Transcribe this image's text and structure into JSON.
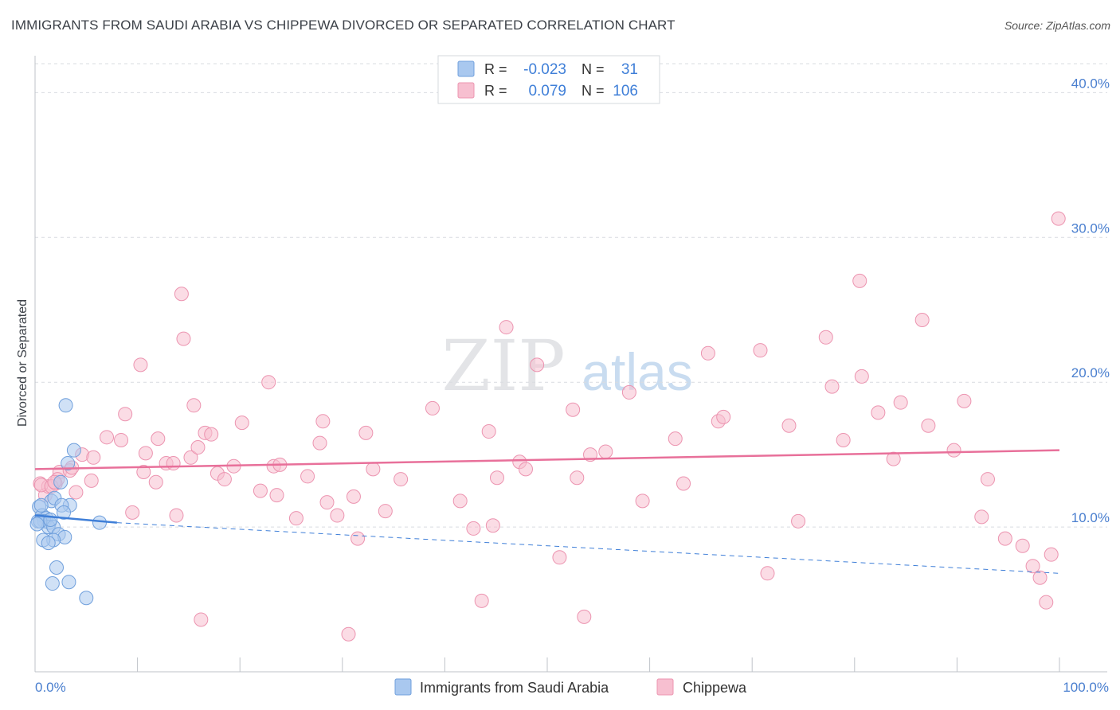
{
  "header": {
    "title": "IMMIGRANTS FROM SAUDI ARABIA VS CHIPPEWA DIVORCED OR SEPARATED CORRELATION CHART",
    "source": "Source: ZipAtlas.com"
  },
  "watermark": {
    "zip": "ZIP",
    "atlas": "atlas"
  },
  "stats": [
    {
      "r_label": "R =",
      "r_value": "-0.023",
      "n_label": "N =",
      "n_value": "31"
    },
    {
      "r_label": "R =",
      "r_value": "0.079",
      "n_label": "N =",
      "n_value": "106"
    }
  ],
  "colors": {
    "blue_fill": "#a9c8ef",
    "blue_stroke": "#6f9fdc",
    "blue_line": "#3f7fd8",
    "pink_fill": "#f7bfd0",
    "pink_stroke": "#ec94b0",
    "pink_line": "#e8709a",
    "tick_text": "#4a7fcf",
    "grid": "#d9dce1"
  },
  "chart_data": {
    "type": "scatter",
    "title": "IMMIGRANTS FROM SAUDI ARABIA VS CHIPPEWA DIVORCED OR SEPARATED CORRELATION CHART",
    "xlabel": "",
    "ylabel": "Divorced or Separated",
    "xlim": [
      0,
      100
    ],
    "ylim": [
      0,
      42
    ],
    "x_tick_labels": [
      "0.0%",
      "100.0%"
    ],
    "y_ticks": [
      10,
      20,
      30,
      40
    ],
    "y_tick_labels": [
      "10.0%",
      "20.0%",
      "30.0%",
      "40.0%"
    ],
    "grid": true,
    "legend_position": "bottom-center",
    "series": [
      {
        "name": "Immigrants from Saudi Arabia",
        "r": -0.023,
        "n": 31,
        "trend": {
          "x": [
            0,
            8
          ],
          "y": [
            10.8,
            10.3
          ]
        },
        "trend_extended": {
          "x": [
            8,
            100
          ],
          "y": [
            10.3,
            6.8
          ]
        },
        "points": [
          [
            3.0,
            18.4
          ],
          [
            3.8,
            15.3
          ],
          [
            3.2,
            14.4
          ],
          [
            2.5,
            13.1
          ],
          [
            1.6,
            11.8
          ],
          [
            1.9,
            12.0
          ],
          [
            3.4,
            11.5
          ],
          [
            2.6,
            11.5
          ],
          [
            2.8,
            11.0
          ],
          [
            0.4,
            11.4
          ],
          [
            0.7,
            10.8
          ],
          [
            1.1,
            10.6
          ],
          [
            0.9,
            10.4
          ],
          [
            1.4,
            10.3
          ],
          [
            0.3,
            10.4
          ],
          [
            1.3,
            10.0
          ],
          [
            0.5,
            10.4
          ],
          [
            1.8,
            10.0
          ],
          [
            6.3,
            10.3
          ],
          [
            2.3,
            9.5
          ],
          [
            2.9,
            9.3
          ],
          [
            1.8,
            9.1
          ],
          [
            0.8,
            9.1
          ],
          [
            1.3,
            8.9
          ],
          [
            2.1,
            7.2
          ],
          [
            3.3,
            6.2
          ],
          [
            1.7,
            6.1
          ],
          [
            5.0,
            5.1
          ],
          [
            0.2,
            10.2
          ],
          [
            0.6,
            11.5
          ],
          [
            1.5,
            10.5
          ]
        ]
      },
      {
        "name": "Chippewa",
        "r": 0.079,
        "n": 106,
        "trend": {
          "x": [
            0,
            100
          ],
          "y": [
            14.0,
            15.3
          ]
        },
        "points": [
          [
            0.5,
            13.0
          ],
          [
            1.0,
            12.2
          ],
          [
            1.3,
            12.8
          ],
          [
            2.0,
            13.0
          ],
          [
            2.4,
            13.8
          ],
          [
            3.4,
            13.9
          ],
          [
            4.0,
            12.4
          ],
          [
            2.2,
            13.3
          ],
          [
            0.6,
            12.9
          ],
          [
            1.6,
            12.8
          ],
          [
            1.9,
            13.1
          ],
          [
            3.6,
            14.1
          ],
          [
            4.6,
            15.0
          ],
          [
            5.5,
            13.2
          ],
          [
            5.7,
            14.8
          ],
          [
            7.0,
            16.2
          ],
          [
            8.4,
            16.0
          ],
          [
            8.8,
            17.8
          ],
          [
            9.5,
            11.0
          ],
          [
            10.3,
            21.2
          ],
          [
            10.6,
            13.8
          ],
          [
            10.8,
            15.1
          ],
          [
            11.8,
            13.1
          ],
          [
            12.0,
            16.1
          ],
          [
            12.8,
            14.4
          ],
          [
            13.5,
            14.4
          ],
          [
            13.8,
            10.8
          ],
          [
            14.3,
            26.1
          ],
          [
            14.5,
            23.0
          ],
          [
            15.2,
            14.8
          ],
          [
            15.5,
            18.4
          ],
          [
            15.9,
            15.5
          ],
          [
            16.2,
            3.6
          ],
          [
            16.6,
            16.5
          ],
          [
            17.2,
            16.4
          ],
          [
            17.8,
            13.7
          ],
          [
            18.5,
            13.3
          ],
          [
            19.4,
            14.2
          ],
          [
            20.2,
            17.2
          ],
          [
            22.0,
            12.5
          ],
          [
            22.8,
            20.0
          ],
          [
            23.3,
            14.2
          ],
          [
            23.6,
            12.2
          ],
          [
            23.9,
            14.3
          ],
          [
            25.5,
            10.6
          ],
          [
            26.6,
            13.5
          ],
          [
            27.8,
            15.8
          ],
          [
            28.1,
            17.3
          ],
          [
            28.5,
            11.7
          ],
          [
            29.5,
            10.8
          ],
          [
            30.6,
            2.6
          ],
          [
            31.1,
            12.1
          ],
          [
            31.5,
            9.2
          ],
          [
            32.3,
            16.5
          ],
          [
            33.0,
            14.0
          ],
          [
            34.2,
            11.1
          ],
          [
            35.7,
            13.3
          ],
          [
            38.8,
            18.2
          ],
          [
            41.5,
            11.8
          ],
          [
            42.8,
            9.9
          ],
          [
            43.6,
            4.9
          ],
          [
            44.3,
            16.6
          ],
          [
            44.7,
            10.1
          ],
          [
            45.1,
            13.4
          ],
          [
            46.0,
            23.8
          ],
          [
            47.3,
            14.5
          ],
          [
            47.9,
            14.0
          ],
          [
            49.0,
            21.2
          ],
          [
            51.2,
            7.9
          ],
          [
            52.5,
            18.1
          ],
          [
            52.9,
            13.4
          ],
          [
            53.6,
            3.8
          ],
          [
            54.2,
            15.0
          ],
          [
            55.7,
            15.2
          ],
          [
            58.0,
            19.3
          ],
          [
            59.3,
            11.8
          ],
          [
            62.5,
            16.1
          ],
          [
            63.3,
            13.0
          ],
          [
            65.7,
            22.0
          ],
          [
            66.7,
            17.3
          ],
          [
            67.2,
            17.6
          ],
          [
            70.8,
            22.2
          ],
          [
            71.5,
            6.8
          ],
          [
            73.6,
            17.0
          ],
          [
            74.5,
            10.4
          ],
          [
            77.2,
            23.1
          ],
          [
            77.8,
            19.7
          ],
          [
            78.9,
            16.0
          ],
          [
            80.5,
            27.0
          ],
          [
            80.7,
            20.4
          ],
          [
            82.3,
            17.9
          ],
          [
            83.8,
            14.7
          ],
          [
            84.5,
            18.6
          ],
          [
            86.6,
            24.3
          ],
          [
            87.2,
            17.0
          ],
          [
            89.7,
            15.3
          ],
          [
            90.7,
            18.7
          ],
          [
            92.4,
            10.7
          ],
          [
            93.0,
            13.3
          ],
          [
            94.7,
            9.2
          ],
          [
            96.4,
            8.7
          ],
          [
            97.4,
            7.3
          ],
          [
            98.1,
            6.5
          ],
          [
            98.7,
            4.8
          ],
          [
            99.2,
            8.1
          ],
          [
            99.9,
            31.3
          ]
        ]
      }
    ]
  }
}
